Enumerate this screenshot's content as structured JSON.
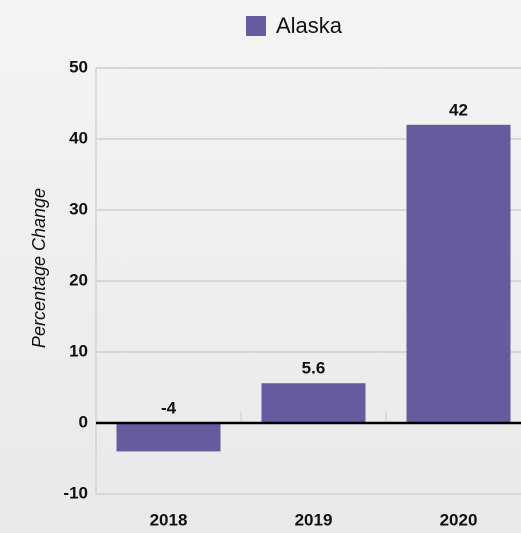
{
  "chart_data": {
    "type": "bar",
    "categories": [
      "2018",
      "2019",
      "2020"
    ],
    "series": [
      {
        "name": "Alaska",
        "color": "#675a9e",
        "values": [
          -4,
          5.6,
          42
        ]
      }
    ],
    "y_label": "Percentage Change",
    "ylim": [
      -10,
      50
    ],
    "yticks": [
      -10,
      0,
      10,
      20,
      30,
      40,
      50
    ],
    "grid": true,
    "legend": "top"
  }
}
